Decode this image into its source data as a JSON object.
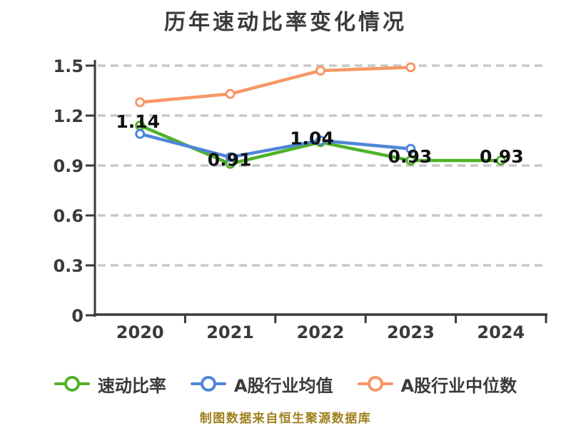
{
  "chart_data": {
    "type": "line",
    "title": "历年速动比率变化情况",
    "x": [
      "2020",
      "2021",
      "2022",
      "2023",
      "2024"
    ],
    "y_ticks": [
      "0",
      "0.3",
      "0.6",
      "0.9",
      "1.2",
      "1.5"
    ],
    "ylim": [
      0,
      1.5
    ],
    "grid": "horizontal-dashed",
    "legend_position": "bottom",
    "series": [
      {
        "key": "quick-ratio",
        "name": "速动比率",
        "color": "#4fb228",
        "values": [
          1.14,
          0.91,
          1.04,
          0.93,
          0.93
        ],
        "point_labels": [
          "1.14",
          "0.91",
          "1.04",
          "0.93",
          "0.93"
        ]
      },
      {
        "key": "industry-average",
        "name": "A股行业均值",
        "color": "#4f86d8",
        "values": [
          1.09,
          0.95,
          1.05,
          1.0,
          null
        ],
        "point_labels": null
      },
      {
        "key": "industry-median",
        "name": "A股行业中位数",
        "color": "#f79766",
        "values": [
          1.28,
          1.33,
          1.47,
          1.49,
          null
        ],
        "point_labels": null
      }
    ],
    "colors": {
      "axis": "#3a3a3a",
      "grid": "#c9c9c9",
      "data_label": "#111111",
      "marker_fill": "#ffffff"
    }
  },
  "footer": {
    "text": "制图数据来自恒生聚源数据库"
  }
}
